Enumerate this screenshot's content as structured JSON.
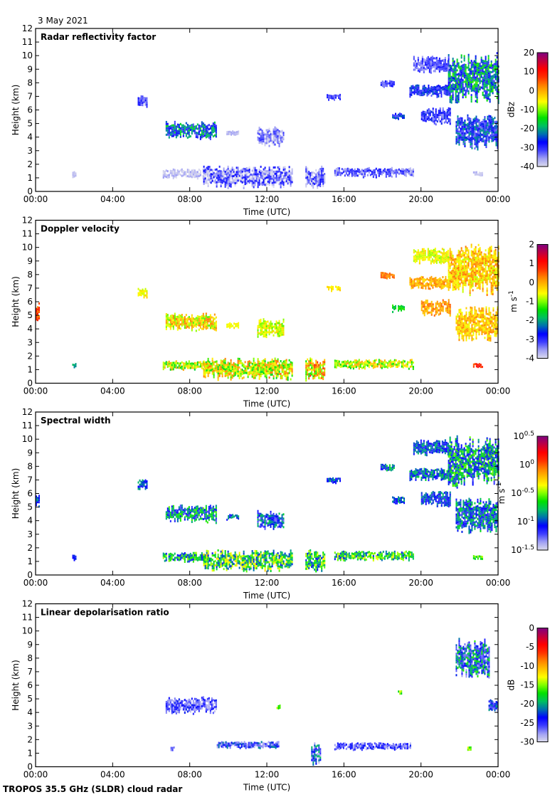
{
  "header": {
    "date": "3 May 2021"
  },
  "footer": {
    "instrument": "TROPOS 35.5 GHz (SLDR) cloud radar"
  },
  "colormap": [
    "#dcdcec",
    "#a0a0f4",
    "#4040ff",
    "#0000ff",
    "#0070b0",
    "#00c060",
    "#00e000",
    "#80ff00",
    "#ffff00",
    "#ffc000",
    "#ff8000",
    "#ff3000",
    "#ff0000",
    "#c00040",
    "#800080"
  ],
  "chart_data": [
    {
      "type": "heatmap",
      "title": "Radar reflectivity factor",
      "xlabel": "Time (UTC)",
      "ylabel": "Height (km)",
      "xlim": [
        0,
        24
      ],
      "ylim": [
        0,
        12
      ],
      "xticks": [
        "00:00",
        "04:00",
        "08:00",
        "12:00",
        "16:00",
        "20:00",
        "00:00"
      ],
      "yticks": [
        "0",
        "1",
        "2",
        "3",
        "4",
        "5",
        "6",
        "7",
        "8",
        "9",
        "10",
        "11",
        "12"
      ],
      "colorbar": {
        "label": "dBz",
        "range": [
          -40,
          20
        ],
        "ticks": [
          "20",
          "10",
          "0",
          "-10",
          "-20",
          "-30",
          "-40"
        ],
        "scale": "linear"
      },
      "regions": [
        {
          "t": [
            5.3,
            5.8
          ],
          "h": [
            6.3,
            7.1
          ],
          "v": -32,
          "s": 4
        },
        {
          "t": [
            6.75,
            9.35
          ],
          "h": [
            3.9,
            5.2
          ],
          "v": -24,
          "s": 9
        },
        {
          "t": [
            9.9,
            10.5
          ],
          "h": [
            4.1,
            4.5
          ],
          "v": -38,
          "s": 2
        },
        {
          "t": [
            11.5,
            12.9
          ],
          "h": [
            3.4,
            4.8
          ],
          "v": -35,
          "s": 5
        },
        {
          "t": [
            6.6,
            8.9
          ],
          "h": [
            1.0,
            1.7
          ],
          "v": -38,
          "s": 3
        },
        {
          "t": [
            8.7,
            13.3
          ],
          "h": [
            0.3,
            1.9
          ],
          "v": -34,
          "s": 7
        },
        {
          "t": [
            14.0,
            15.0
          ],
          "h": [
            0.2,
            1.9
          ],
          "v": -34,
          "s": 6
        },
        {
          "t": [
            15.5,
            19.6
          ],
          "h": [
            1.1,
            1.8
          ],
          "v": -33,
          "s": 5
        },
        {
          "t": [
            15.1,
            15.8
          ],
          "h": [
            6.8,
            7.2
          ],
          "v": -32,
          "s": 3
        },
        {
          "t": [
            17.9,
            18.6
          ],
          "h": [
            7.7,
            8.2
          ],
          "v": -30,
          "s": 4
        },
        {
          "t": [
            19.4,
            21.4
          ],
          "h": [
            7.0,
            7.9
          ],
          "v": -28,
          "s": 5
        },
        {
          "t": [
            18.5,
            19.1
          ],
          "h": [
            5.3,
            5.8
          ],
          "v": -28,
          "s": 5
        },
        {
          "t": [
            21.4,
            24.0
          ],
          "h": [
            6.5,
            10.3
          ],
          "v": -22,
          "s": 10
        },
        {
          "t": [
            21.8,
            24.0
          ],
          "h": [
            3.1,
            5.7
          ],
          "v": -27,
          "s": 7
        },
        {
          "t": [
            19.6,
            21.4
          ],
          "h": [
            8.8,
            10.0
          ],
          "v": -32,
          "s": 4
        },
        {
          "t": [
            20.0,
            21.5
          ],
          "h": [
            5.0,
            6.2
          ],
          "v": -30,
          "s": 5
        },
        {
          "t": [
            22.7,
            23.2
          ],
          "h": [
            1.2,
            1.5
          ],
          "v": -38,
          "s": 2
        },
        {
          "t": [
            1.9,
            2.1
          ],
          "h": [
            1.1,
            1.5
          ],
          "v": -38,
          "s": 1
        }
      ]
    },
    {
      "type": "heatmap",
      "title": "Doppler velocity",
      "xlabel": "Time (UTC)",
      "ylabel": "Height (km)",
      "xlim": [
        0,
        24
      ],
      "ylim": [
        0,
        12
      ],
      "xticks": [
        "00:00",
        "04:00",
        "08:00",
        "12:00",
        "16:00",
        "20:00",
        "00:00"
      ],
      "yticks": [
        "0",
        "1",
        "2",
        "3",
        "4",
        "5",
        "6",
        "7",
        "8",
        "9",
        "10",
        "11",
        "12"
      ],
      "colorbar": {
        "label": "m s",
        "label_sup": "-1",
        "range": [
          -4,
          2
        ],
        "ticks": [
          "2",
          "1",
          "0",
          "-1",
          "-2",
          "-3",
          "-4"
        ],
        "scale": "linear"
      },
      "regions": [
        {
          "t": [
            0.0,
            0.15
          ],
          "h": [
            4.6,
            6.0
          ],
          "v": 0.6,
          "s": 0.4
        },
        {
          "t": [
            5.3,
            5.8
          ],
          "h": [
            6.3,
            7.1
          ],
          "v": -0.5,
          "s": 0.3
        },
        {
          "t": [
            6.75,
            9.35
          ],
          "h": [
            3.9,
            5.2
          ],
          "v": -0.4,
          "s": 0.8
        },
        {
          "t": [
            9.9,
            10.5
          ],
          "h": [
            4.1,
            4.5
          ],
          "v": -0.5,
          "s": 0.2
        },
        {
          "t": [
            11.5,
            12.9
          ],
          "h": [
            3.4,
            4.8
          ],
          "v": -0.7,
          "s": 0.5
        },
        {
          "t": [
            6.6,
            8.9
          ],
          "h": [
            1.0,
            1.7
          ],
          "v": -0.8,
          "s": 0.9
        },
        {
          "t": [
            8.7,
            13.3
          ],
          "h": [
            0.3,
            1.9
          ],
          "v": -0.6,
          "s": 1.0
        },
        {
          "t": [
            14.0,
            15.0
          ],
          "h": [
            0.2,
            1.9
          ],
          "v": -0.3,
          "s": 1.1
        },
        {
          "t": [
            15.5,
            19.6
          ],
          "h": [
            1.1,
            1.8
          ],
          "v": -0.7,
          "s": 0.8
        },
        {
          "t": [
            15.1,
            15.8
          ],
          "h": [
            6.8,
            7.2
          ],
          "v": -0.4,
          "s": 0.2
        },
        {
          "t": [
            17.9,
            18.6
          ],
          "h": [
            7.7,
            8.2
          ],
          "v": 0.3,
          "s": 0.3
        },
        {
          "t": [
            19.4,
            21.4
          ],
          "h": [
            7.0,
            7.9
          ],
          "v": 0.0,
          "s": 0.4
        },
        {
          "t": [
            18.5,
            19.1
          ],
          "h": [
            5.3,
            5.8
          ],
          "v": -1.5,
          "s": 0.3
        },
        {
          "t": [
            21.4,
            24.0
          ],
          "h": [
            6.5,
            10.3
          ],
          "v": -0.2,
          "s": 0.6
        },
        {
          "t": [
            21.8,
            24.0
          ],
          "h": [
            3.1,
            5.7
          ],
          "v": -0.2,
          "s": 0.5
        },
        {
          "t": [
            19.6,
            21.4
          ],
          "h": [
            8.8,
            10.0
          ],
          "v": -0.6,
          "s": 0.4
        },
        {
          "t": [
            20.0,
            21.5
          ],
          "h": [
            5.0,
            6.2
          ],
          "v": 0.1,
          "s": 0.4
        },
        {
          "t": [
            22.7,
            23.2
          ],
          "h": [
            1.2,
            1.5
          ],
          "v": 0.9,
          "s": 0.4
        },
        {
          "t": [
            1.9,
            2.1
          ],
          "h": [
            1.1,
            1.5
          ],
          "v": -2.0,
          "s": 0.2
        }
      ]
    },
    {
      "type": "heatmap",
      "title": "Spectral width",
      "xlabel": "Time (UTC)",
      "ylabel": "Height (km)",
      "xlim": [
        0,
        24
      ],
      "ylim": [
        0,
        12
      ],
      "xticks": [
        "00:00",
        "04:00",
        "08:00",
        "12:00",
        "16:00",
        "20:00",
        "00:00"
      ],
      "yticks": [
        "0",
        "1",
        "2",
        "3",
        "4",
        "5",
        "6",
        "7",
        "8",
        "9",
        "10",
        "11",
        "12"
      ],
      "colorbar": {
        "label": "m s",
        "label_sup": "-1",
        "range_log10": [
          -1.5,
          0.5
        ],
        "ticks_exp": [
          "0.5",
          "0",
          "-0.5",
          "-1",
          "-1.5"
        ],
        "tick_base": "10",
        "scale": "log"
      },
      "regions": [
        {
          "t": [
            0.0,
            0.15
          ],
          "h": [
            5.0,
            6.0
          ],
          "v": -1.0,
          "s": 0.2
        },
        {
          "t": [
            5.3,
            5.8
          ],
          "h": [
            6.3,
            7.1
          ],
          "v": -1.0,
          "s": 0.2
        },
        {
          "t": [
            6.75,
            9.35
          ],
          "h": [
            3.9,
            5.2
          ],
          "v": -0.9,
          "s": 0.35
        },
        {
          "t": [
            9.9,
            10.5
          ],
          "h": [
            4.1,
            4.5
          ],
          "v": -1.0,
          "s": 0.2
        },
        {
          "t": [
            11.5,
            12.9
          ],
          "h": [
            3.4,
            4.8
          ],
          "v": -1.0,
          "s": 0.3
        },
        {
          "t": [
            6.6,
            8.9
          ],
          "h": [
            1.0,
            1.7
          ],
          "v": -0.8,
          "s": 0.35
        },
        {
          "t": [
            8.7,
            13.3
          ],
          "h": [
            0.3,
            1.9
          ],
          "v": -0.65,
          "s": 0.4
        },
        {
          "t": [
            14.0,
            15.0
          ],
          "h": [
            0.2,
            1.9
          ],
          "v": -0.7,
          "s": 0.4
        },
        {
          "t": [
            15.5,
            19.6
          ],
          "h": [
            1.1,
            1.8
          ],
          "v": -0.7,
          "s": 0.35
        },
        {
          "t": [
            15.1,
            15.8
          ],
          "h": [
            6.8,
            7.2
          ],
          "v": -1.0,
          "s": 0.2
        },
        {
          "t": [
            17.9,
            18.6
          ],
          "h": [
            7.7,
            8.2
          ],
          "v": -0.95,
          "s": 0.25
        },
        {
          "t": [
            19.4,
            21.4
          ],
          "h": [
            7.0,
            7.9
          ],
          "v": -0.95,
          "s": 0.25
        },
        {
          "t": [
            18.5,
            19.1
          ],
          "h": [
            5.3,
            5.8
          ],
          "v": -1.0,
          "s": 0.2
        },
        {
          "t": [
            21.4,
            24.0
          ],
          "h": [
            6.5,
            10.3
          ],
          "v": -0.85,
          "s": 0.35
        },
        {
          "t": [
            21.8,
            24.0
          ],
          "h": [
            3.1,
            5.7
          ],
          "v": -0.95,
          "s": 0.3
        },
        {
          "t": [
            19.6,
            21.4
          ],
          "h": [
            8.8,
            10.0
          ],
          "v": -1.0,
          "s": 0.2
        },
        {
          "t": [
            20.0,
            21.5
          ],
          "h": [
            5.0,
            6.2
          ],
          "v": -1.0,
          "s": 0.2
        },
        {
          "t": [
            22.7,
            23.2
          ],
          "h": [
            1.2,
            1.5
          ],
          "v": -0.6,
          "s": 0.2
        },
        {
          "t": [
            1.9,
            2.1
          ],
          "h": [
            1.1,
            1.5
          ],
          "v": -1.1,
          "s": 0.1
        }
      ]
    },
    {
      "type": "heatmap",
      "title": "Linear depolarisation ratio",
      "xlabel": "Time (UTC)",
      "ylabel": "Height (km)",
      "xlim": [
        0,
        24
      ],
      "ylim": [
        0,
        12
      ],
      "xticks": [
        "00:00",
        "04:00",
        "08:00",
        "12:00",
        "16:00",
        "20:00",
        "00:00"
      ],
      "yticks": [
        "0",
        "1",
        "2",
        "3",
        "4",
        "5",
        "6",
        "7",
        "8",
        "9",
        "10",
        "11",
        "12"
      ],
      "colorbar": {
        "label": "dB",
        "range": [
          -30,
          0
        ],
        "ticks": [
          "0",
          "-5",
          "-10",
          "-15",
          "-20",
          "-25",
          "-30"
        ],
        "scale": "linear"
      },
      "regions": [
        {
          "t": [
            6.75,
            9.35
          ],
          "h": [
            3.9,
            5.2
          ],
          "v": -26,
          "s": 3
        },
        {
          "t": [
            7.0,
            7.2
          ],
          "h": [
            1.3,
            1.5
          ],
          "v": -26,
          "s": 2
        },
        {
          "t": [
            9.4,
            12.6
          ],
          "h": [
            1.4,
            1.9
          ],
          "v": -25,
          "s": 4
        },
        {
          "t": [
            12.5,
            12.7
          ],
          "h": [
            4.3,
            4.6
          ],
          "v": -15,
          "s": 3
        },
        {
          "t": [
            14.3,
            14.8
          ],
          "h": [
            0.2,
            1.8
          ],
          "v": -24,
          "s": 5
        },
        {
          "t": [
            15.5,
            19.5
          ],
          "h": [
            1.3,
            1.8
          ],
          "v": -26,
          "s": 3
        },
        {
          "t": [
            18.8,
            19.0
          ],
          "h": [
            5.4,
            5.7
          ],
          "v": -15,
          "s": 3
        },
        {
          "t": [
            21.8,
            23.5
          ],
          "h": [
            6.5,
            9.5
          ],
          "v": -22,
          "s": 6
        },
        {
          "t": [
            23.5,
            24.0
          ],
          "h": [
            4.0,
            5.0
          ],
          "v": -24,
          "s": 4
        },
        {
          "t": [
            22.4,
            22.6
          ],
          "h": [
            1.2,
            1.5
          ],
          "v": -15,
          "s": 2
        }
      ]
    }
  ]
}
